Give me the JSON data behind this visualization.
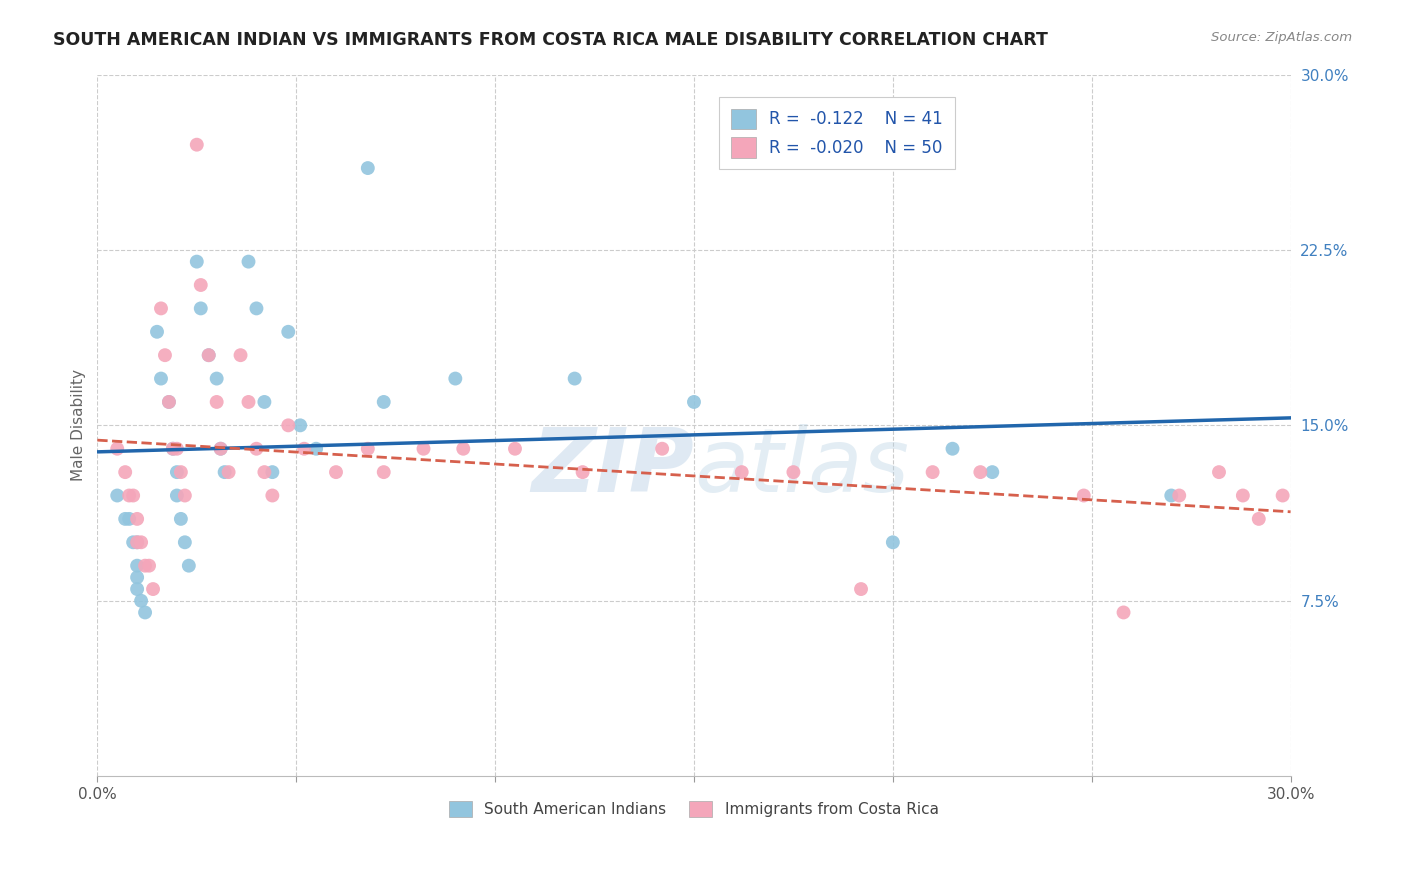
{
  "title": "SOUTH AMERICAN INDIAN VS IMMIGRANTS FROM COSTA RICA MALE DISABILITY CORRELATION CHART",
  "source": "Source: ZipAtlas.com",
  "ylabel": "Male Disability",
  "xmin": 0.0,
  "xmax": 0.3,
  "ymin": 0.0,
  "ymax": 0.3,
  "r_blue": -0.122,
  "n_blue": 41,
  "r_pink": -0.02,
  "n_pink": 50,
  "legend_label_blue": "South American Indians",
  "legend_label_pink": "Immigrants from Costa Rica",
  "blue_color": "#92c5de",
  "pink_color": "#f4a6ba",
  "blue_line_color": "#2166ac",
  "pink_line_color": "#d6604d",
  "blue_scatter_x": [
    0.005,
    0.007,
    0.008,
    0.009,
    0.01,
    0.01,
    0.01,
    0.01,
    0.011,
    0.012,
    0.015,
    0.016,
    0.018,
    0.019,
    0.02,
    0.02,
    0.021,
    0.022,
    0.023,
    0.025,
    0.026,
    0.028,
    0.03,
    0.031,
    0.032,
    0.038,
    0.04,
    0.042,
    0.044,
    0.048,
    0.051,
    0.055,
    0.068,
    0.072,
    0.09,
    0.12,
    0.15,
    0.2,
    0.215,
    0.225,
    0.27
  ],
  "blue_scatter_y": [
    0.12,
    0.11,
    0.11,
    0.1,
    0.1,
    0.09,
    0.085,
    0.08,
    0.075,
    0.07,
    0.19,
    0.17,
    0.16,
    0.14,
    0.13,
    0.12,
    0.11,
    0.1,
    0.09,
    0.22,
    0.2,
    0.18,
    0.17,
    0.14,
    0.13,
    0.22,
    0.2,
    0.16,
    0.13,
    0.19,
    0.15,
    0.14,
    0.26,
    0.16,
    0.17,
    0.17,
    0.16,
    0.1,
    0.14,
    0.13,
    0.12
  ],
  "pink_scatter_x": [
    0.005,
    0.007,
    0.008,
    0.009,
    0.01,
    0.01,
    0.011,
    0.012,
    0.013,
    0.014,
    0.016,
    0.017,
    0.018,
    0.019,
    0.02,
    0.021,
    0.022,
    0.025,
    0.026,
    0.028,
    0.03,
    0.031,
    0.033,
    0.036,
    0.038,
    0.04,
    0.042,
    0.044,
    0.048,
    0.052,
    0.06,
    0.068,
    0.072,
    0.082,
    0.092,
    0.105,
    0.122,
    0.142,
    0.162,
    0.175,
    0.192,
    0.21,
    0.222,
    0.248,
    0.258,
    0.272,
    0.282,
    0.288,
    0.292,
    0.298
  ],
  "pink_scatter_y": [
    0.14,
    0.13,
    0.12,
    0.12,
    0.11,
    0.1,
    0.1,
    0.09,
    0.09,
    0.08,
    0.2,
    0.18,
    0.16,
    0.14,
    0.14,
    0.13,
    0.12,
    0.27,
    0.21,
    0.18,
    0.16,
    0.14,
    0.13,
    0.18,
    0.16,
    0.14,
    0.13,
    0.12,
    0.15,
    0.14,
    0.13,
    0.14,
    0.13,
    0.14,
    0.14,
    0.14,
    0.13,
    0.14,
    0.13,
    0.13,
    0.08,
    0.13,
    0.13,
    0.12,
    0.07,
    0.12,
    0.13,
    0.12,
    0.11,
    0.12
  ],
  "watermark_zip": "ZIP",
  "watermark_atlas": "atlas",
  "background_color": "#ffffff",
  "grid_color": "#cccccc"
}
